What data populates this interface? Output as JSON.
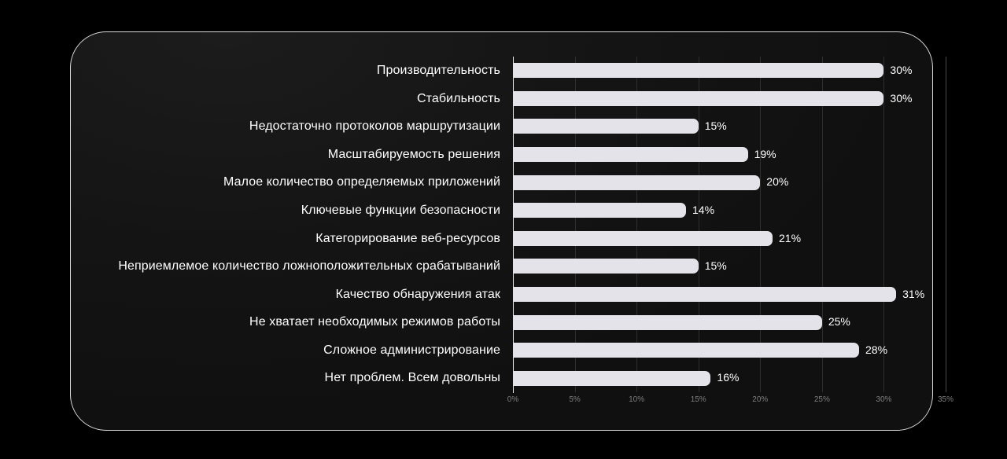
{
  "slide": {
    "kind": "dark-presentation-slide-with-bar-chart"
  },
  "colors": {
    "page_background": "#000000",
    "card_background": "#151515",
    "card_border": "#d9d9d9",
    "bar_fill": "#e5e3ea",
    "category_label": "#ffffff",
    "value_label": "#ffffff",
    "axis_tick_label": "#7f7f7f",
    "gridline_minor": "#2e2e2e",
    "gridline_outer": "#4a4a4a",
    "zero_axis_line": "#e8e8e8"
  },
  "chart_data": {
    "type": "bar",
    "orientation": "horizontal",
    "title": "",
    "xlabel": "",
    "ylabel": "",
    "xlim": [
      0,
      35
    ],
    "x_tick_step": 5,
    "x_ticks": [
      "0%",
      "5%",
      "10%",
      "15%",
      "20%",
      "25%",
      "30%",
      "35%"
    ],
    "grid": "vertical",
    "legend": "none",
    "categories": [
      "Производительность",
      "Стабильность",
      "Недостаточно протоколов маршрутизации",
      "Масштабируемость решения",
      "Малое количество определяемых приложений",
      "Ключевые функции безопасности",
      "Категорирование веб-ресурсов",
      "Неприемлемое количество ложноположительных срабатываний",
      "Качество обнаружения атак",
      "Не хватает необходимых режимов работы",
      "Сложное администрирование",
      "Нет проблем. Всем довольны"
    ],
    "values": [
      30,
      30,
      15,
      19,
      20,
      14,
      21,
      15,
      31,
      25,
      28,
      16
    ],
    "value_labels": [
      "30%",
      "30%",
      "15%",
      "19%",
      "20%",
      "14%",
      "21%",
      "15%",
      "31%",
      "25%",
      "28%",
      "16%"
    ]
  }
}
